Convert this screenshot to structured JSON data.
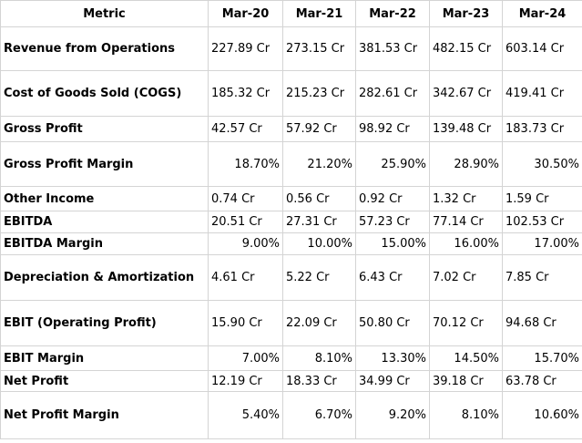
{
  "header": {
    "metric": "Metric",
    "periods": [
      "Mar-20",
      "Mar-21",
      "Mar-22",
      "Mar-23",
      "Mar-24"
    ]
  },
  "rows": [
    {
      "label": "Revenue from Operations",
      "values": [
        "227.89 Cr",
        "273.15 Cr",
        "381.53 Cr",
        "482.15 Cr",
        "603.14 Cr"
      ]
    },
    {
      "label": "Cost of Goods Sold (COGS)",
      "values": [
        "185.32 Cr",
        "215.23 Cr",
        "282.61 Cr",
        "342.67 Cr",
        "419.41 Cr"
      ]
    },
    {
      "label": "Gross Profit",
      "values": [
        "42.57 Cr",
        "57.92 Cr",
        "98.92 Cr",
        "139.48 Cr",
        "183.73 Cr"
      ]
    },
    {
      "label": "Gross Profit Margin",
      "values": [
        "18.70%",
        "21.20%",
        "25.90%",
        "28.90%",
        "30.50%"
      ]
    },
    {
      "label": "Other Income",
      "values": [
        "0.74 Cr",
        "0.56 Cr",
        "0.92 Cr",
        "1.32 Cr",
        "1.59 Cr"
      ]
    },
    {
      "label": "EBITDA",
      "values": [
        "20.51 Cr",
        "27.31 Cr",
        "57.23 Cr",
        "77.14 Cr",
        "102.53 Cr"
      ]
    },
    {
      "label": "EBITDA Margin",
      "values": [
        "9.00%",
        "10.00%",
        "15.00%",
        "16.00%",
        "17.00%"
      ]
    },
    {
      "label": "Depreciation & Amortization",
      "values": [
        "4.61 Cr",
        "5.22 Cr",
        "6.43 Cr",
        "7.02 Cr",
        "7.85 Cr"
      ]
    },
    {
      "label": "EBIT (Operating Profit)",
      "values": [
        "15.90 Cr",
        "22.09 Cr",
        "50.80 Cr",
        "70.12 Cr",
        "94.68 Cr"
      ]
    },
    {
      "label": "EBIT Margin",
      "values": [
        "7.00%",
        "8.10%",
        "13.30%",
        "14.50%",
        "15.70%"
      ]
    },
    {
      "label": "Net Profit",
      "values": [
        "12.19 Cr",
        "18.33 Cr",
        "34.99 Cr",
        "39.18 Cr",
        "63.78 Cr"
      ]
    },
    {
      "label": "Net Profit Margin",
      "values": [
        "5.40%",
        "6.70%",
        "9.20%",
        "8.10%",
        "10.60%"
      ]
    }
  ]
}
